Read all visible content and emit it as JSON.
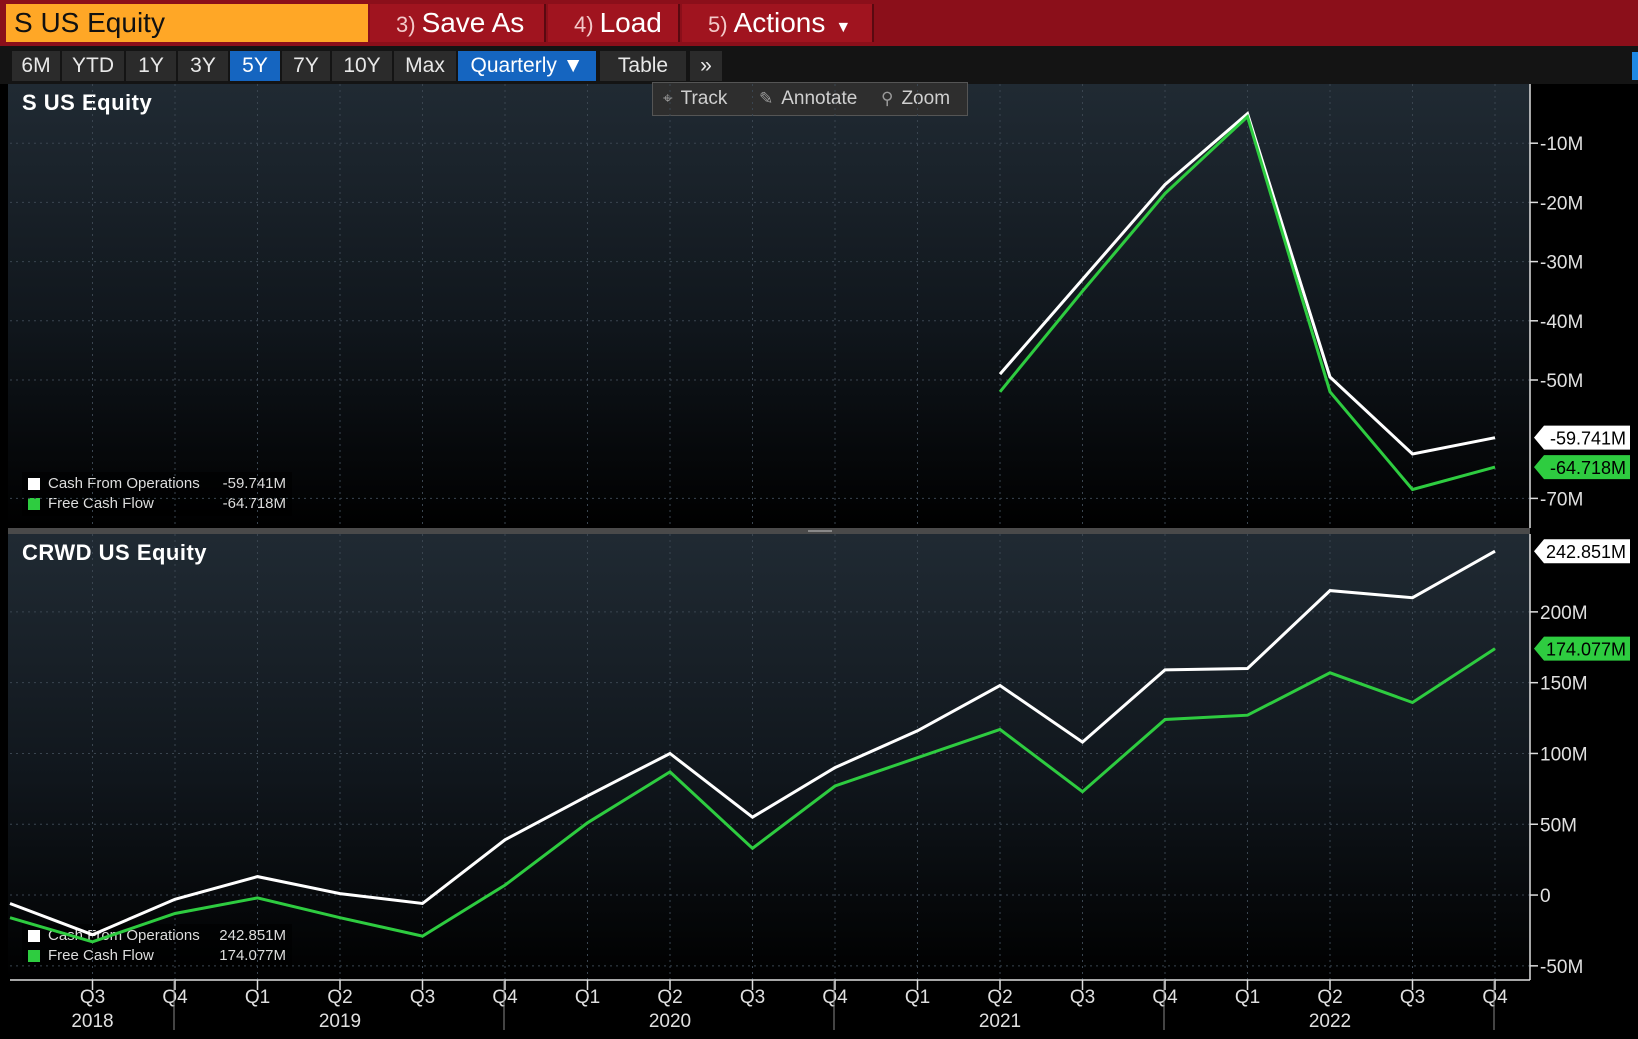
{
  "header": {
    "security": "S US Equity",
    "save_as": {
      "num": "3)",
      "label": "Save As"
    },
    "load": {
      "num": "4)",
      "label": "Load"
    },
    "actions": {
      "num": "5)",
      "label": "Actions"
    }
  },
  "range_buttons": [
    "6M",
    "YTD",
    "1Y",
    "3Y",
    "5Y",
    "7Y",
    "10Y",
    "Max",
    "Quarterly ▼",
    "Table",
    "»"
  ],
  "range_active": [
    "5Y",
    "Quarterly ▼"
  ],
  "toolbar": {
    "track": "Track",
    "annotate": "Annotate",
    "zoom": "Zoom"
  },
  "colors": {
    "series_white": "#ffffff",
    "series_green": "#2ecc40",
    "background": "#000000",
    "header": "#8b0f1a",
    "security_field": "#ffa726",
    "active_button": "#1565c0"
  },
  "chart_data": [
    {
      "type": "line",
      "title": "S US Equity",
      "x": [
        "2021 Q2",
        "2021 Q3",
        "2021 Q4",
        "2022 Q1",
        "2022 Q2",
        "2022 Q3",
        "2022 Q4"
      ],
      "series": [
        {
          "name": "Cash From Operations",
          "color": "#ffffff",
          "values": [
            -49.0,
            -33.0,
            -17.0,
            -5.0,
            -49.5,
            -62.5,
            -59.741
          ]
        },
        {
          "name": "Free Cash Flow",
          "color": "#2ecc40",
          "values": [
            -52.0,
            -35.0,
            -18.5,
            -5.5,
            -52.0,
            -68.5,
            -64.718
          ]
        }
      ],
      "legend": [
        {
          "name": "Cash From Operations",
          "value": "-59.741M"
        },
        {
          "name": "Free Cash Flow",
          "value": "-64.718M"
        }
      ],
      "last_labels": [
        "-59.741M",
        "-64.718M"
      ],
      "yticks": [
        -10,
        -20,
        -30,
        -40,
        -50,
        -70
      ],
      "ytick_labels": [
        "-10M",
        "-20M",
        "-30M",
        "-40M",
        "-50M",
        "-70M"
      ],
      "ylim": [
        -75,
        0
      ],
      "xlim_index": [
        -12,
        6
      ],
      "unit": "M",
      "legend_position": "bottom-left"
    },
    {
      "type": "line",
      "title": "CRWD US Equity",
      "x": [
        "2018 Q2",
        "2018 Q3",
        "2018 Q4",
        "2019 Q1",
        "2019 Q2",
        "2019 Q3",
        "2019 Q4",
        "2020 Q1",
        "2020 Q2",
        "2020 Q3",
        "2020 Q4",
        "2021 Q1",
        "2021 Q2",
        "2021 Q3",
        "2021 Q4",
        "2022 Q1",
        "2022 Q2",
        "2022 Q3",
        "2022 Q4"
      ],
      "series": [
        {
          "name": "Cash From Operations",
          "color": "#ffffff",
          "values": [
            -6,
            -28,
            -3,
            13,
            1,
            -6,
            39,
            70,
            100,
            55,
            90,
            116,
            148,
            108,
            159,
            160,
            215,
            210,
            242.851
          ]
        },
        {
          "name": "Free Cash Flow",
          "color": "#2ecc40",
          "values": [
            -16,
            -33,
            -13,
            -2,
            -16,
            -29,
            7,
            51,
            87,
            33,
            77,
            97,
            117,
            73,
            124,
            127,
            157,
            136,
            174.077
          ]
        }
      ],
      "legend": [
        {
          "name": "Cash From Operations",
          "value": "242.851M"
        },
        {
          "name": "Free Cash Flow",
          "value": "174.077M"
        }
      ],
      "last_labels": [
        "242.851M",
        "174.077M"
      ],
      "yticks": [
        200,
        150,
        100,
        50,
        0,
        -50
      ],
      "ytick_labels": [
        "200M",
        "150M",
        "100M",
        "50M",
        "0",
        "-50M"
      ],
      "ylim": [
        -60,
        255
      ],
      "unit": "M",
      "legend_position": "bottom-left"
    }
  ],
  "x_axis": {
    "quarters": [
      "Q3",
      "Q4",
      "Q1",
      "Q2",
      "Q3",
      "Q4",
      "Q1",
      "Q2",
      "Q3",
      "Q4",
      "Q1",
      "Q2",
      "Q3",
      "Q4",
      "Q1",
      "Q2",
      "Q3",
      "Q4"
    ],
    "years": [
      "2018",
      "2019",
      "2020",
      "2021",
      "2022"
    ]
  }
}
